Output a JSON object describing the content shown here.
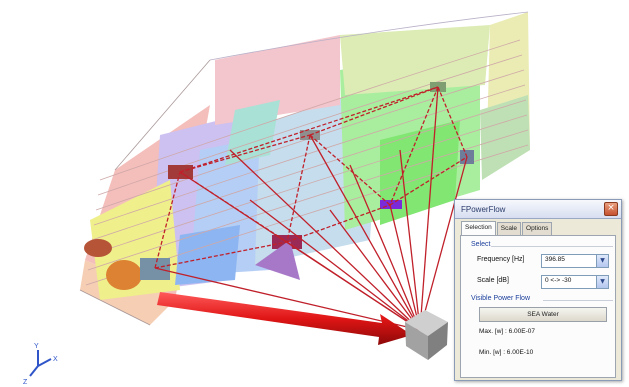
{
  "panel": {
    "title": "FPowerFlow",
    "tabs": [
      "Selection",
      "Scale",
      "Options"
    ],
    "select_group": "Select",
    "frequency_label": "Frequency [Hz]",
    "frequency_value": "396.85",
    "scale_label": "Scale [dB]",
    "scale_value": "0 <-> -30",
    "visible_group": "Visible Power Flow",
    "material": "SEA Water",
    "max_label": "Max. [w] : 6.00E-07",
    "min_label": "Min. [w] : 6.00E-10"
  },
  "axes": {
    "y": "Y",
    "x": "X",
    "z": "Z"
  },
  "colors": {
    "power_flow_lines": "#c0202a",
    "main_arrow": "#d81818",
    "source_cube": "#9c9c9c"
  }
}
